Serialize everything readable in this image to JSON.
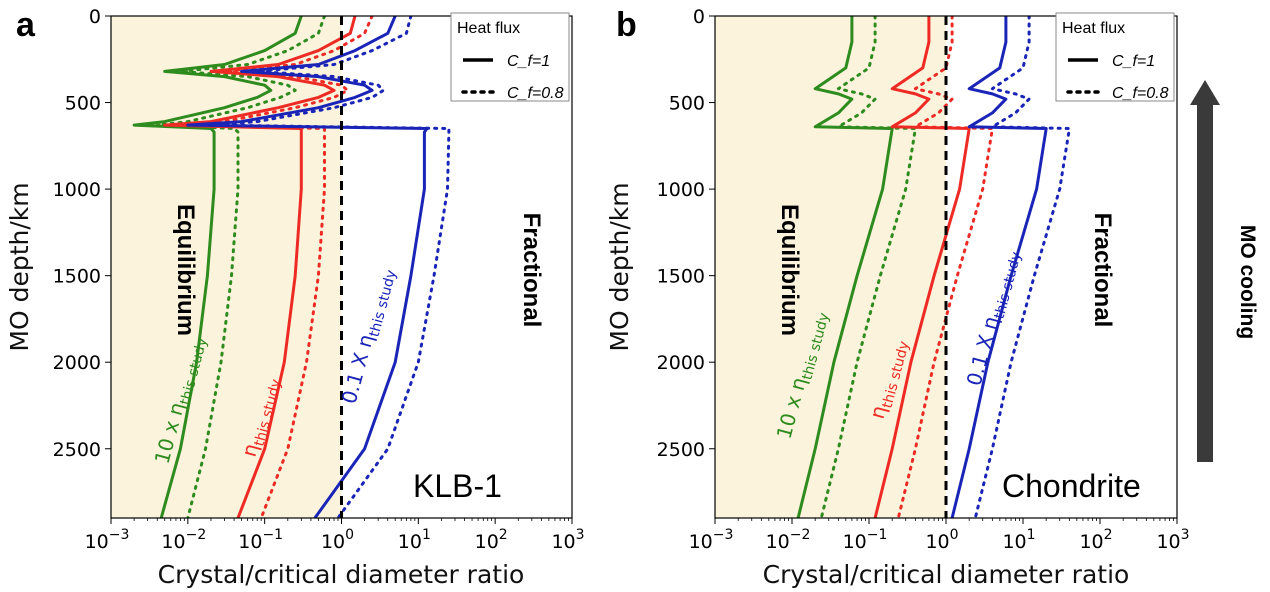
{
  "colors": {
    "green": "#2e8b1e",
    "red": "#ee2a24",
    "blue": "#1a25b8",
    "shade": "#fbf3dc",
    "arrow": "#3a3a3a"
  },
  "side_arrow": {
    "label": "MO cooling",
    "direction": "up"
  },
  "chart_data": [
    {
      "type": "line",
      "panel_label": "a",
      "sample_label": "KLB-1",
      "xlabel": "Crystal/critical diameter ratio",
      "ylabel": "MO depth/km",
      "x_scale": "log",
      "xlim": [
        0.001,
        1000
      ],
      "ylim": [
        2900,
        0
      ],
      "y_inverted": true,
      "x_ticks": [
        "10^-3",
        "10^-2",
        "10^-1",
        "10^0",
        "10^1",
        "10^2",
        "10^3"
      ],
      "y_ticks": [
        0,
        500,
        1000,
        1500,
        2000,
        2500
      ],
      "reference_line": {
        "x": 1,
        "style": "dashed",
        "color": "black"
      },
      "shaded_region": {
        "x_from": 0.001,
        "x_to": 1
      },
      "region_labels": {
        "left": "Equilibrium",
        "right": "Fractional"
      },
      "legend": {
        "title": "Heat flux",
        "position": "top-right",
        "entries": [
          {
            "style": "solid",
            "label": "C_f=1"
          },
          {
            "style": "dotted",
            "label": "C_f=0.8"
          }
        ]
      },
      "curve_labels": [
        {
          "series": "green",
          "text_main": "10 x η",
          "text_sub": "this study"
        },
        {
          "series": "red",
          "text_main": "η",
          "text_sub": "this study"
        },
        {
          "series": "blue",
          "text_main": "0.1 X η",
          "text_sub": "this study"
        }
      ],
      "series": [
        {
          "color": "green",
          "style": "solid",
          "points": [
            [
              0.3,
              0
            ],
            [
              0.25,
              100
            ],
            [
              0.1,
              200
            ],
            [
              0.03,
              280
            ],
            [
              0.005,
              320
            ],
            [
              0.03,
              350
            ],
            [
              0.1,
              400
            ],
            [
              0.12,
              430
            ],
            [
              0.08,
              470
            ],
            [
              0.03,
              530
            ],
            [
              0.005,
              610
            ],
            [
              0.002,
              630
            ],
            [
              0.02,
              650
            ],
            [
              0.022,
              670
            ],
            [
              0.022,
              1000
            ],
            [
              0.018,
              1500
            ],
            [
              0.013,
              2000
            ],
            [
              0.008,
              2500
            ],
            [
              0.0045,
              2900
            ]
          ]
        },
        {
          "color": "green",
          "style": "dotted",
          "points": [
            [
              0.6,
              0
            ],
            [
              0.5,
              100
            ],
            [
              0.2,
              200
            ],
            [
              0.06,
              280
            ],
            [
              0.008,
              320
            ],
            [
              0.06,
              350
            ],
            [
              0.2,
              400
            ],
            [
              0.25,
              430
            ],
            [
              0.16,
              470
            ],
            [
              0.06,
              530
            ],
            [
              0.01,
              610
            ],
            [
              0.004,
              630
            ],
            [
              0.04,
              650
            ],
            [
              0.045,
              670
            ],
            [
              0.045,
              1000
            ],
            [
              0.037,
              1500
            ],
            [
              0.027,
              2000
            ],
            [
              0.017,
              2500
            ],
            [
              0.01,
              2900
            ]
          ]
        },
        {
          "color": "red",
          "style": "solid",
          "points": [
            [
              1.5,
              0
            ],
            [
              1.3,
              100
            ],
            [
              0.5,
              200
            ],
            [
              0.15,
              280
            ],
            [
              0.02,
              320
            ],
            [
              0.15,
              350
            ],
            [
              0.6,
              400
            ],
            [
              0.8,
              430
            ],
            [
              0.5,
              470
            ],
            [
              0.15,
              530
            ],
            [
              0.02,
              610
            ],
            [
              0.005,
              630
            ],
            [
              0.3,
              650
            ],
            [
              0.3,
              670
            ],
            [
              0.3,
              1000
            ],
            [
              0.25,
              1500
            ],
            [
              0.18,
              2000
            ],
            [
              0.1,
              2500
            ],
            [
              0.045,
              2900
            ]
          ]
        },
        {
          "color": "red",
          "style": "dotted",
          "points": [
            [
              2.5,
              0
            ],
            [
              2,
              100
            ],
            [
              0.8,
              200
            ],
            [
              0.25,
              280
            ],
            [
              0.03,
              320
            ],
            [
              0.25,
              350
            ],
            [
              1,
              400
            ],
            [
              1.2,
              430
            ],
            [
              0.8,
              470
            ],
            [
              0.25,
              530
            ],
            [
              0.03,
              610
            ],
            [
              0.008,
              630
            ],
            [
              0.6,
              650
            ],
            [
              0.6,
              670
            ],
            [
              0.6,
              1000
            ],
            [
              0.5,
              1500
            ],
            [
              0.35,
              2000
            ],
            [
              0.2,
              2500
            ],
            [
              0.09,
              2900
            ]
          ]
        },
        {
          "color": "blue",
          "style": "solid",
          "points": [
            [
              5,
              0
            ],
            [
              4,
              100
            ],
            [
              1.5,
              200
            ],
            [
              0.5,
              280
            ],
            [
              0.05,
              320
            ],
            [
              0.5,
              350
            ],
            [
              2,
              400
            ],
            [
              2.5,
              430
            ],
            [
              1.5,
              470
            ],
            [
              0.5,
              530
            ],
            [
              0.05,
              610
            ],
            [
              0.01,
              630
            ],
            [
              13,
              650
            ],
            [
              12,
              670
            ],
            [
              12,
              1000
            ],
            [
              8,
              1500
            ],
            [
              5,
              2000
            ],
            [
              2,
              2500
            ],
            [
              0.45,
              2900
            ]
          ]
        },
        {
          "color": "blue",
          "style": "dotted",
          "points": [
            [
              8,
              0
            ],
            [
              7,
              100
            ],
            [
              2.5,
              200
            ],
            [
              0.8,
              280
            ],
            [
              0.08,
              320
            ],
            [
              0.8,
              350
            ],
            [
              3,
              400
            ],
            [
              3.5,
              430
            ],
            [
              2.5,
              470
            ],
            [
              0.8,
              530
            ],
            [
              0.08,
              610
            ],
            [
              0.02,
              630
            ],
            [
              25,
              650
            ],
            [
              25,
              670
            ],
            [
              24,
              1000
            ],
            [
              16,
              1500
            ],
            [
              10,
              2000
            ],
            [
              4,
              2500
            ],
            [
              0.9,
              2900
            ]
          ]
        }
      ]
    },
    {
      "type": "line",
      "panel_label": "b",
      "sample_label": "Chondrite",
      "xlabel": "Crystal/critical diameter ratio",
      "ylabel": "MO depth/km",
      "x_scale": "log",
      "xlim": [
        0.001,
        1000
      ],
      "ylim": [
        2900,
        0
      ],
      "y_inverted": true,
      "x_ticks": [
        "10^-3",
        "10^-2",
        "10^-1",
        "10^0",
        "10^1",
        "10^2",
        "10^3"
      ],
      "y_ticks": [
        0,
        500,
        1000,
        1500,
        2000,
        2500
      ],
      "reference_line": {
        "x": 1,
        "style": "dashed",
        "color": "black"
      },
      "shaded_region": {
        "x_from": 0.001,
        "x_to": 1
      },
      "region_labels": {
        "left": "Equilibrium",
        "right": "Fractional"
      },
      "legend": {
        "title": "Heat flux",
        "position": "top-right",
        "entries": [
          {
            "style": "solid",
            "label": "C_f=1"
          },
          {
            "style": "dotted",
            "label": "C_f=0.8"
          }
        ]
      },
      "curve_labels": [
        {
          "series": "green",
          "text_main": "10 x η",
          "text_sub": "this study"
        },
        {
          "series": "red",
          "text_main": "η",
          "text_sub": "this study"
        },
        {
          "series": "blue",
          "text_main": "0.1 X η",
          "text_sub": "this study"
        }
      ],
      "series": [
        {
          "color": "green",
          "style": "solid",
          "points": [
            [
              0.06,
              0
            ],
            [
              0.06,
              150
            ],
            [
              0.05,
              300
            ],
            [
              0.02,
              420
            ],
            [
              0.04,
              450
            ],
            [
              0.06,
              480
            ],
            [
              0.04,
              560
            ],
            [
              0.02,
              640
            ],
            [
              0.2,
              650
            ],
            [
              0.15,
              1000
            ],
            [
              0.07,
              1500
            ],
            [
              0.035,
              2000
            ],
            [
              0.02,
              2500
            ],
            [
              0.012,
              2900
            ]
          ]
        },
        {
          "color": "green",
          "style": "dotted",
          "points": [
            [
              0.12,
              0
            ],
            [
              0.12,
              150
            ],
            [
              0.1,
              300
            ],
            [
              0.04,
              420
            ],
            [
              0.08,
              450
            ],
            [
              0.12,
              480
            ],
            [
              0.08,
              560
            ],
            [
              0.04,
              640
            ],
            [
              0.4,
              650
            ],
            [
              0.3,
              1000
            ],
            [
              0.14,
              1500
            ],
            [
              0.07,
              2000
            ],
            [
              0.04,
              2500
            ],
            [
              0.024,
              2900
            ]
          ]
        },
        {
          "color": "red",
          "style": "solid",
          "points": [
            [
              0.6,
              0
            ],
            [
              0.6,
              150
            ],
            [
              0.5,
              300
            ],
            [
              0.2,
              420
            ],
            [
              0.4,
              450
            ],
            [
              0.6,
              480
            ],
            [
              0.4,
              560
            ],
            [
              0.2,
              640
            ],
            [
              2,
              650
            ],
            [
              1.5,
              1000
            ],
            [
              0.7,
              1500
            ],
            [
              0.35,
              2000
            ],
            [
              0.2,
              2500
            ],
            [
              0.12,
              2900
            ]
          ]
        },
        {
          "color": "red",
          "style": "dotted",
          "points": [
            [
              1.2,
              0
            ],
            [
              1.2,
              150
            ],
            [
              1,
              300
            ],
            [
              0.4,
              420
            ],
            [
              0.8,
              450
            ],
            [
              1.2,
              480
            ],
            [
              0.8,
              560
            ],
            [
              0.4,
              640
            ],
            [
              4,
              650
            ],
            [
              3,
              1000
            ],
            [
              1.4,
              1500
            ],
            [
              0.7,
              2000
            ],
            [
              0.4,
              2500
            ],
            [
              0.24,
              2900
            ]
          ]
        },
        {
          "color": "blue",
          "style": "solid",
          "points": [
            [
              6,
              0
            ],
            [
              6,
              150
            ],
            [
              5,
              300
            ],
            [
              2,
              420
            ],
            [
              4,
              450
            ],
            [
              6,
              480
            ],
            [
              4,
              560
            ],
            [
              2,
              640
            ],
            [
              20,
              650
            ],
            [
              15,
              1000
            ],
            [
              7,
              1500
            ],
            [
              3.5,
              2000
            ],
            [
              2,
              2500
            ],
            [
              1.2,
              2900
            ]
          ]
        },
        {
          "color": "blue",
          "style": "dotted",
          "points": [
            [
              12,
              0
            ],
            [
              12,
              150
            ],
            [
              10,
              300
            ],
            [
              4,
              420
            ],
            [
              8,
              450
            ],
            [
              12,
              480
            ],
            [
              8,
              560
            ],
            [
              4,
              640
            ],
            [
              40,
              650
            ],
            [
              30,
              1000
            ],
            [
              14,
              1500
            ],
            [
              7,
              2000
            ],
            [
              4,
              2500
            ],
            [
              2.4,
              2900
            ]
          ]
        }
      ]
    }
  ]
}
